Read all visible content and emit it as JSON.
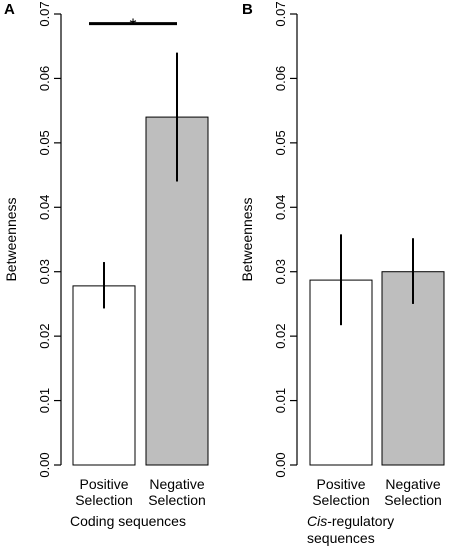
{
  "chart_data": [
    {
      "type": "bar",
      "panel_letter": "A",
      "categories": [
        [
          "Positive",
          "Selection"
        ],
        [
          "Negative",
          "Selection"
        ]
      ],
      "values": [
        0.0278,
        0.054
      ],
      "error_low": [
        0.0243,
        0.044
      ],
      "error_high": [
        0.0315,
        0.064
      ],
      "bar_colors": [
        "#ffffff",
        "#bebebe"
      ],
      "ylabel": "Betweenness",
      "ylim": [
        0,
        0.07
      ],
      "yticks": [
        "0.00",
        "0.01",
        "0.02",
        "0.03",
        "0.04",
        "0.05",
        "0.06",
        "0.07"
      ],
      "group_label": [
        [
          {
            "text": "Coding sequences",
            "italic": false
          }
        ]
      ],
      "significance": {
        "from": 0,
        "to": 1,
        "label": "*",
        "y": 0.0685
      }
    },
    {
      "type": "bar",
      "panel_letter": "B",
      "categories": [
        [
          "Positive",
          "Selection"
        ],
        [
          "Negative",
          "Selection"
        ]
      ],
      "values": [
        0.0287,
        0.03
      ],
      "error_low": [
        0.0217,
        0.025
      ],
      "error_high": [
        0.0358,
        0.0352
      ],
      "bar_colors": [
        "#ffffff",
        "#bebebe"
      ],
      "ylabel": "Betweenness",
      "ylim": [
        0,
        0.07
      ],
      "yticks": [
        "0.00",
        "0.01",
        "0.02",
        "0.03",
        "0.04",
        "0.05",
        "0.06",
        "0.07"
      ],
      "group_label": [
        [
          {
            "text": "Cis",
            "italic": true
          },
          {
            "text": "-regulatory",
            "italic": false
          }
        ],
        [
          {
            "text": "sequences",
            "italic": false
          }
        ]
      ]
    }
  ]
}
